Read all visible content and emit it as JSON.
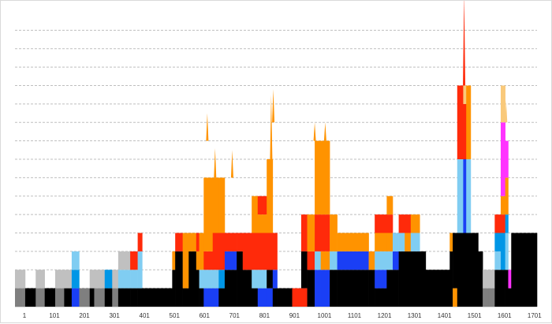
{
  "chart_data": {
    "type": "area",
    "title": "",
    "xlabel": "",
    "ylabel": "",
    "x_tick_labels": [
      "1",
      "101",
      "201",
      "301",
      "401",
      "501",
      "601",
      "701",
      "801",
      "901",
      "1001",
      "1101",
      "1201",
      "1301",
      "1401",
      "1501",
      "1601",
      "1701"
    ],
    "xlim": [
      1,
      1741
    ],
    "ylim": [
      0,
      16
    ],
    "grid": true,
    "y_gridlines": 15,
    "colors": {
      "light-gray": "#c0c0c0",
      "dark-gray": "#7f7f7f",
      "black": "#000000",
      "blue": "#1a3ff5",
      "azure": "#0096e6",
      "sky": "#80cdf2",
      "red": "#ff2a0a",
      "orange": "#ff9300",
      "light-orange": "#f9c97a",
      "magenta": "#ff33ff"
    },
    "segments": [
      {
        "x0": 1,
        "x1": 25,
        "layers": [
          {
            "c": "dark-gray",
            "v": 1
          },
          {
            "c": "light-gray",
            "v": 1
          }
        ]
      },
      {
        "x0": 25,
        "x1": 35,
        "layers": [
          {
            "c": "dark-gray",
            "v": 1
          },
          {
            "c": "light-gray",
            "v": 1
          }
        ]
      },
      {
        "x0": 35,
        "x1": 70,
        "layers": [
          {
            "c": "black",
            "v": 1
          }
        ]
      },
      {
        "x0": 70,
        "x1": 100,
        "layers": [
          {
            "c": "dark-gray",
            "v": 1
          },
          {
            "c": "light-gray",
            "v": 1
          }
        ]
      },
      {
        "x0": 100,
        "x1": 135,
        "layers": [
          {
            "c": "black",
            "v": 1
          }
        ]
      },
      {
        "x0": 135,
        "x1": 165,
        "layers": [
          {
            "c": "dark-gray",
            "v": 1
          },
          {
            "c": "light-gray",
            "v": 1
          }
        ]
      },
      {
        "x0": 165,
        "x1": 190,
        "layers": [
          {
            "c": "black",
            "v": 1
          },
          {
            "c": "light-gray",
            "v": 1
          }
        ]
      },
      {
        "x0": 190,
        "x1": 215,
        "layers": [
          {
            "c": "blue",
            "v": 1
          },
          {
            "c": "azure",
            "v": 1
          },
          {
            "c": "sky",
            "v": 1
          }
        ]
      },
      {
        "x0": 215,
        "x1": 250,
        "layers": [
          {
            "c": "dark-gray",
            "v": 1
          }
        ]
      },
      {
        "x0": 250,
        "x1": 265,
        "layers": [
          {
            "c": "black",
            "v": 1
          },
          {
            "c": "light-gray",
            "v": 1
          }
        ]
      },
      {
        "x0": 265,
        "x1": 300,
        "layers": [
          {
            "c": "dark-gray",
            "v": 1
          },
          {
            "c": "light-gray",
            "v": 1
          }
        ]
      },
      {
        "x0": 300,
        "x1": 325,
        "layers": [
          {
            "c": "black",
            "v": 1
          },
          {
            "c": "azure",
            "v": 1
          }
        ]
      },
      {
        "x0": 325,
        "x1": 345,
        "layers": [
          {
            "c": "dark-gray",
            "v": 1
          },
          {
            "c": "light-gray",
            "v": 1
          }
        ]
      },
      {
        "x0": 345,
        "x1": 385,
        "layers": [
          {
            "c": "black",
            "v": 1
          },
          {
            "c": "sky",
            "v": 1
          },
          {
            "c": "light-gray",
            "v": 1
          }
        ]
      },
      {
        "x0": 385,
        "x1": 410,
        "layers": [
          {
            "c": "black",
            "v": 1
          },
          {
            "c": "sky",
            "v": 1
          },
          {
            "c": "red",
            "v": 1
          }
        ]
      },
      {
        "x0": 410,
        "x1": 425,
        "layers": [
          {
            "c": "black",
            "v": 1
          },
          {
            "c": "sky",
            "v": 2
          },
          {
            "c": "red",
            "v": 1
          }
        ]
      },
      {
        "x0": 425,
        "x1": 525,
        "layers": [
          {
            "c": "black",
            "v": 1
          }
        ]
      },
      {
        "x0": 525,
        "x1": 535,
        "layers": [
          {
            "c": "black",
            "v": 2
          },
          {
            "c": "orange",
            "v": 1
          }
        ]
      },
      {
        "x0": 535,
        "x1": 560,
        "layers": [
          {
            "c": "black",
            "v": 3
          },
          {
            "c": "red",
            "v": 1
          }
        ]
      },
      {
        "x0": 560,
        "x1": 580,
        "layers": [
          {
            "c": "black",
            "v": 1
          },
          {
            "c": "orange",
            "v": 3
          }
        ]
      },
      {
        "x0": 580,
        "x1": 605,
        "layers": [
          {
            "c": "black",
            "v": 3
          },
          {
            "c": "orange",
            "v": 1
          }
        ]
      },
      {
        "x0": 605,
        "x1": 615,
        "layers": [
          {
            "c": "black",
            "v": 2
          },
          {
            "c": "orange",
            "v": 1
          },
          {
            "c": "red",
            "v": 1
          }
        ]
      },
      {
        "x0": 615,
        "x1": 630,
        "layers": [
          {
            "c": "black",
            "v": 1
          },
          {
            "c": "sky",
            "v": 1
          },
          {
            "c": "orange",
            "v": 2
          }
        ]
      },
      {
        "x0": 630,
        "x1": 660,
        "layers": [
          {
            "c": "blue",
            "v": 1
          },
          {
            "c": "sky",
            "v": 1
          },
          {
            "c": "red",
            "v": 1
          },
          {
            "c": "orange",
            "v": 4
          }
        ]
      },
      {
        "x0": 660,
        "x1": 680,
        "layers": [
          {
            "c": "blue",
            "v": 1
          },
          {
            "c": "sky",
            "v": 1
          },
          {
            "c": "red",
            "v": 2
          },
          {
            "c": "orange",
            "v": 3
          }
        ]
      },
      {
        "x0": 680,
        "x1": 700,
        "layers": [
          {
            "c": "black",
            "v": 1
          },
          {
            "c": "azure",
            "v": 1
          },
          {
            "c": "red",
            "v": 2
          },
          {
            "c": "orange",
            "v": 3
          }
        ]
      },
      {
        "x0": 700,
        "x1": 740,
        "layers": [
          {
            "c": "black",
            "v": 2
          },
          {
            "c": "blue",
            "v": 1
          },
          {
            "c": "red",
            "v": 1
          }
        ]
      },
      {
        "x0": 740,
        "x1": 760,
        "layers": [
          {
            "c": "black",
            "v": 3
          },
          {
            "c": "red",
            "v": 1
          }
        ]
      },
      {
        "x0": 760,
        "x1": 790,
        "layers": [
          {
            "c": "black",
            "v": 2
          },
          {
            "c": "red",
            "v": 2
          }
        ]
      },
      {
        "x0": 790,
        "x1": 810,
        "layers": [
          {
            "c": "black",
            "v": 1
          },
          {
            "c": "sky",
            "v": 1
          },
          {
            "c": "red",
            "v": 2
          },
          {
            "c": "orange",
            "v": 2
          }
        ]
      },
      {
        "x0": 810,
        "x1": 840,
        "layers": [
          {
            "c": "blue",
            "v": 1
          },
          {
            "c": "sky",
            "v": 1
          },
          {
            "c": "red",
            "v": 2
          },
          {
            "c": "orange",
            "v": 1
          },
          {
            "c": "red",
            "v": 1
          }
        ]
      },
      {
        "x0": 840,
        "x1": 860,
        "layers": [
          {
            "c": "blue",
            "v": 1
          },
          {
            "c": "black",
            "v": 1
          },
          {
            "c": "red",
            "v": 2
          },
          {
            "c": "orange",
            "v": 4
          }
        ]
      },
      {
        "x0": 860,
        "x1": 875,
        "layers": [
          {
            "c": "black",
            "v": 1
          },
          {
            "c": "blue",
            "v": 1
          },
          {
            "c": "red",
            "v": 2
          }
        ]
      },
      {
        "x0": 875,
        "x1": 925,
        "layers": [
          {
            "c": "black",
            "v": 1
          }
        ]
      },
      {
        "x0": 925,
        "x1": 955,
        "layers": [
          {
            "c": "red",
            "v": 1
          }
        ]
      },
      {
        "x0": 955,
        "x1": 975,
        "layers": [
          {
            "c": "red",
            "v": 1
          },
          {
            "c": "black",
            "v": 2
          },
          {
            "c": "red",
            "v": 2
          }
        ]
      },
      {
        "x0": 975,
        "x1": 1000,
        "layers": [
          {
            "c": "black",
            "v": 2
          },
          {
            "c": "red",
            "v": 1
          },
          {
            "c": "orange",
            "v": 2
          }
        ]
      },
      {
        "x0": 1000,
        "x1": 1020,
        "layers": [
          {
            "c": "blue",
            "v": 2
          },
          {
            "c": "sky",
            "v": 1
          },
          {
            "c": "red",
            "v": 2
          },
          {
            "c": "orange",
            "v": 4
          }
        ]
      },
      {
        "x0": 1020,
        "x1": 1050,
        "layers": [
          {
            "c": "blue",
            "v": 2
          },
          {
            "c": "orange",
            "v": 1
          },
          {
            "c": "red",
            "v": 2
          },
          {
            "c": "orange",
            "v": 4
          }
        ]
      },
      {
        "x0": 1050,
        "x1": 1075,
        "layers": [
          {
            "c": "black",
            "v": 2
          },
          {
            "c": "sky",
            "v": 1
          },
          {
            "c": "orange",
            "v": 2
          }
        ]
      },
      {
        "x0": 1075,
        "x1": 1180,
        "layers": [
          {
            "c": "black",
            "v": 2
          },
          {
            "c": "blue",
            "v": 1
          },
          {
            "c": "orange",
            "v": 1
          }
        ]
      },
      {
        "x0": 1180,
        "x1": 1200,
        "layers": [
          {
            "c": "black",
            "v": 2
          },
          {
            "c": "orange",
            "v": 1
          }
        ]
      },
      {
        "x0": 1200,
        "x1": 1240,
        "layers": [
          {
            "c": "black",
            "v": 1
          },
          {
            "c": "blue",
            "v": 1
          },
          {
            "c": "sky",
            "v": 1
          },
          {
            "c": "orange",
            "v": 1
          },
          {
            "c": "red",
            "v": 1
          }
        ]
      },
      {
        "x0": 1240,
        "x1": 1260,
        "layers": [
          {
            "c": "black",
            "v": 2
          },
          {
            "c": "sky",
            "v": 1
          },
          {
            "c": "orange",
            "v": 1
          },
          {
            "c": "red",
            "v": 1
          },
          {
            "c": "orange",
            "v": 1
          }
        ]
      },
      {
        "x0": 1260,
        "x1": 1280,
        "layers": [
          {
            "c": "black",
            "v": 2
          },
          {
            "c": "blue",
            "v": 1
          },
          {
            "c": "sky",
            "v": 1
          }
        ]
      },
      {
        "x0": 1280,
        "x1": 1300,
        "layers": [
          {
            "c": "black",
            "v": 3
          },
          {
            "c": "sky",
            "v": 1
          },
          {
            "c": "red",
            "v": 1
          }
        ]
      },
      {
        "x0": 1300,
        "x1": 1320,
        "layers": [
          {
            "c": "black",
            "v": 3
          },
          {
            "c": "orange",
            "v": 1
          },
          {
            "c": "red",
            "v": 1
          }
        ]
      },
      {
        "x0": 1320,
        "x1": 1350,
        "layers": [
          {
            "c": "black",
            "v": 3
          },
          {
            "c": "sky",
            "v": 1
          },
          {
            "c": "orange",
            "v": 1
          }
        ]
      },
      {
        "x0": 1350,
        "x1": 1370,
        "layers": [
          {
            "c": "black",
            "v": 3
          }
        ]
      },
      {
        "x0": 1370,
        "x1": 1450,
        "layers": [
          {
            "c": "black",
            "v": 2
          }
        ]
      },
      {
        "x0": 1450,
        "x1": 1460,
        "layers": [
          {
            "c": "black",
            "v": 3
          },
          {
            "c": "orange",
            "v": 1
          }
        ]
      },
      {
        "x0": 1460,
        "x1": 1475,
        "layers": [
          {
            "c": "orange",
            "v": 1
          },
          {
            "c": "black",
            "v": 3
          }
        ]
      },
      {
        "x0": 1475,
        "x1": 1495,
        "layers": [
          {
            "c": "black",
            "v": 4
          },
          {
            "c": "sky",
            "v": 4
          },
          {
            "c": "red",
            "v": 4
          }
        ]
      },
      {
        "x0": 1495,
        "x1": 1505,
        "layers": [
          {
            "c": "black",
            "v": 4
          },
          {
            "c": "blue",
            "v": 4
          },
          {
            "c": "red",
            "v": 3
          },
          {
            "c": "light-orange",
            "v": 1
          }
        ]
      },
      {
        "x0": 1505,
        "x1": 1520,
        "layers": [
          {
            "c": "black",
            "v": 4
          },
          {
            "c": "sky",
            "v": 4
          },
          {
            "c": "orange",
            "v": 4
          }
        ]
      },
      {
        "x0": 1520,
        "x1": 1545,
        "layers": [
          {
            "c": "black",
            "v": 4
          }
        ]
      },
      {
        "x0": 1545,
        "x1": 1560,
        "layers": [
          {
            "c": "black",
            "v": 3
          }
        ]
      },
      {
        "x0": 1560,
        "x1": 1580,
        "layers": [
          {
            "c": "dark-gray",
            "v": 1
          },
          {
            "c": "light-gray",
            "v": 1
          }
        ]
      },
      {
        "x0": 1580,
        "x1": 1600,
        "layers": [
          {
            "c": "dark-gray",
            "v": 1
          },
          {
            "c": "light-gray",
            "v": 1
          }
        ]
      },
      {
        "x0": 1600,
        "x1": 1620,
        "layers": [
          {
            "c": "black",
            "v": 2
          },
          {
            "c": "sky",
            "v": 1
          },
          {
            "c": "azure",
            "v": 1
          },
          {
            "c": "red",
            "v": 1
          }
        ]
      },
      {
        "x0": 1620,
        "x1": 1635,
        "layers": [
          {
            "c": "black",
            "v": 2
          },
          {
            "c": "azure",
            "v": 2
          },
          {
            "c": "red",
            "v": 1
          },
          {
            "c": "orange",
            "v": 1
          },
          {
            "c": "magenta",
            "v": 4
          },
          {
            "c": "light-orange",
            "v": 2
          }
        ]
      },
      {
        "x0": 1635,
        "x1": 1645,
        "layers": [
          {
            "c": "black",
            "v": 2
          },
          {
            "c": "sky",
            "v": 2
          },
          {
            "c": "azure",
            "v": 1
          },
          {
            "c": "orange",
            "v": 2
          },
          {
            "c": "magenta",
            "v": 2
          }
        ]
      },
      {
        "x0": 1645,
        "x1": 1655,
        "layers": [
          {
            "c": "black",
            "v": 1
          },
          {
            "c": "magenta",
            "v": 1
          }
        ]
      },
      {
        "x0": 1655,
        "x1": 1705,
        "layers": [
          {
            "c": "black",
            "v": 4
          }
        ]
      },
      {
        "x0": 1705,
        "x1": 1741,
        "layers": [
          {
            "c": "black",
            "v": 4
          }
        ]
      }
    ],
    "spikes": [
      {
        "x": 642,
        "y0": 9,
        "y1": 10.5,
        "c": "orange"
      },
      {
        "x": 668,
        "y0": 7,
        "y1": 8.6,
        "c": "orange"
      },
      {
        "x": 725,
        "y0": 7,
        "y1": 8.5,
        "c": "orange"
      },
      {
        "x": 855,
        "y0": 8,
        "y1": 11.5,
        "c": "orange"
      },
      {
        "x": 862,
        "y0": 10,
        "y1": 11.8,
        "c": "orange"
      },
      {
        "x": 1000,
        "y0": 9,
        "y1": 10,
        "c": "orange"
      },
      {
        "x": 1035,
        "y0": 9,
        "y1": 10,
        "c": "orange"
      },
      {
        "x": 1498,
        "y0": 12,
        "y1": 17,
        "c": "red"
      },
      {
        "x": 1638,
        "y0": 10,
        "y1": 11.2,
        "c": "light-orange"
      }
    ]
  }
}
